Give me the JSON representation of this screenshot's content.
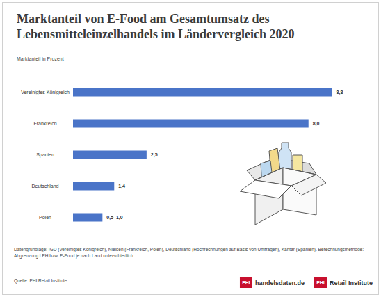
{
  "chart_data": {
    "type": "bar",
    "orientation": "horizontal",
    "title": "Marktanteil von E-Food am Gesamtumsatz des Lebensmitteleinzelhandels im Ländervergleich 2020",
    "subtitle": "Marktanteil in Prozent",
    "categories": [
      "Vereinigtes Königreich",
      "Frankreich",
      "Spanien",
      "Deutschland",
      "Polen"
    ],
    "values": [
      8.8,
      8.0,
      2.5,
      1.4,
      1.0
    ],
    "value_labels": [
      "8,8",
      "8,0",
      "2,5",
      "1,4",
      "0,5–1,0"
    ],
    "data_labels": true,
    "color": "#4a74c8",
    "xlim": [
      0,
      9.4
    ],
    "tick_labels": "y",
    "grid": false,
    "note": "Datengrundlage: IGD (Vereinigtes Königreich), Nielsen (Frankreich, Polen), Deutschland (Hochrechnungen auf Basis von Umfragen), Kantar (Spanien). Berechnungsmethode: Abgrenzung LEH bzw. E-Food je nach Land unterschiedlich.",
    "source": "Quelle: EHI Retail Institute",
    "logos": [
      {
        "mark": "EHI",
        "text": "handelsdaten.de"
      },
      {
        "mark": "EHI",
        "text": "Retail Institute"
      }
    ]
  }
}
